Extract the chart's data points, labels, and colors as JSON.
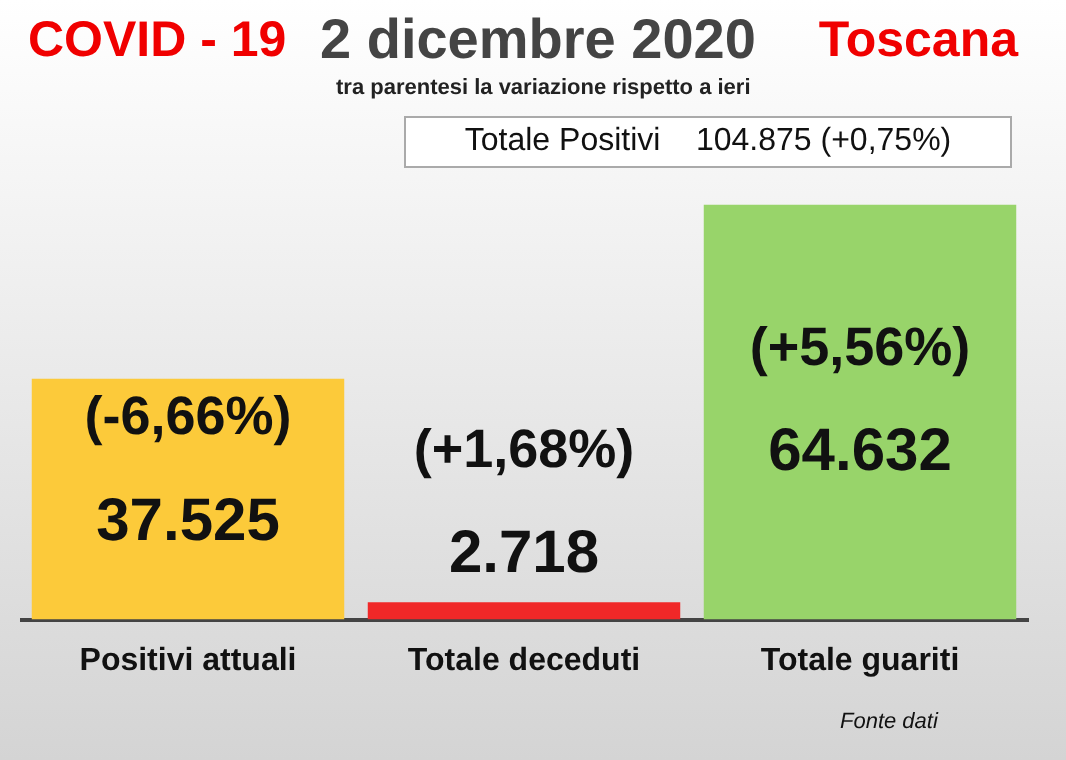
{
  "chart_data": {
    "type": "bar",
    "title": "2 dicembre 2020",
    "subtitle": "tra parentesi la variazione rispetto a ieri",
    "categories": [
      "Positivi attuali",
      "Totale deceduti",
      "Totale guariti"
    ],
    "values": [
      37525,
      2718,
      64632
    ],
    "colors": [
      "#fcca3a",
      "#f02828",
      "#98d46a"
    ],
    "value_labels": [
      "37.525",
      "2.718",
      "64.632"
    ],
    "annotations": [
      "COVID - 19",
      "Toscana",
      "Totale Positivi    104.875 (+0,75%)",
      "Fonte dati",
      "(-6,66%)",
      "(+1,68%)",
      "(+5,56%)"
    ]
  }
}
